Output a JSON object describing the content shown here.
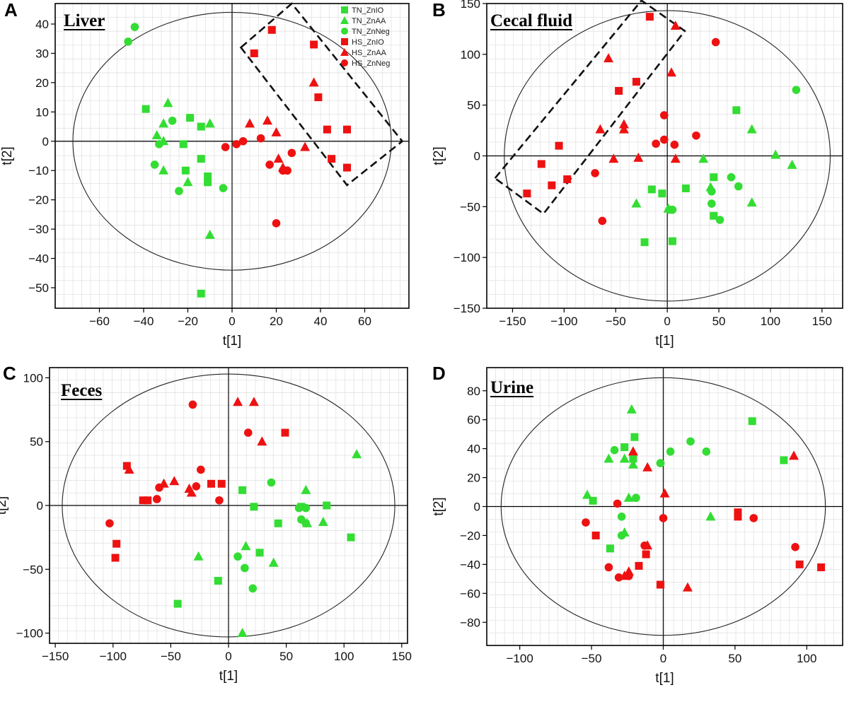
{
  "figure": {
    "legend": [
      {
        "label": "TN_ZnIO",
        "color": "#33dd33",
        "marker": "square"
      },
      {
        "label": "TN_ZnAA",
        "color": "#33dd33",
        "marker": "triangle"
      },
      {
        "label": "TN_ZnNeg",
        "color": "#33dd33",
        "marker": "circle"
      },
      {
        "label": "HS_ZnIO",
        "color": "#ee1111",
        "marker": "square"
      },
      {
        "label": "HS_ZnAA",
        "color": "#ee1111",
        "marker": "triangle"
      },
      {
        "label": "HS_ZnNeg",
        "color": "#ee1111",
        "marker": "circle"
      }
    ]
  },
  "chart_data": [
    {
      "type": "scatter",
      "letter": "A",
      "title": "Liver",
      "xlabel": "t[1]",
      "ylabel": "t[2]",
      "xlim": [
        -80,
        80
      ],
      "ylim": [
        -57,
        47
      ],
      "xticks": [
        -60,
        -40,
        -20,
        0,
        20,
        40,
        60
      ],
      "yticks": [
        -50,
        -40,
        -30,
        -20,
        -10,
        0,
        10,
        20,
        30,
        40
      ],
      "ellipse": {
        "rx": 72,
        "ry": 44
      },
      "highlight_box": [
        [
          4,
          32
        ],
        [
          27,
          47
        ],
        [
          77,
          0
        ],
        [
          52,
          -15
        ]
      ],
      "series": [
        {
          "name": "TN_ZnIO",
          "color": "#33dd33",
          "marker": "square",
          "points": [
            [
              -39,
              11
            ],
            [
              -19,
              8
            ],
            [
              -14,
              5
            ],
            [
              -22,
              -1
            ],
            [
              -21,
              -10
            ],
            [
              -14,
              -6
            ],
            [
              -11,
              -12
            ],
            [
              -11,
              -14
            ],
            [
              -14,
              -52
            ]
          ]
        },
        {
          "name": "TN_ZnAA",
          "color": "#33dd33",
          "marker": "triangle",
          "points": [
            [
              -29,
              13
            ],
            [
              -31,
              6
            ],
            [
              -34,
              2
            ],
            [
              -31,
              0
            ],
            [
              -31,
              -10
            ],
            [
              -20,
              -14
            ],
            [
              -10,
              6
            ],
            [
              -10,
              -32
            ]
          ]
        },
        {
          "name": "TN_ZnNeg",
          "color": "#33dd33",
          "marker": "circle",
          "points": [
            [
              -44,
              39
            ],
            [
              -47,
              34
            ],
            [
              -27,
              7
            ],
            [
              -33,
              -1
            ],
            [
              -35,
              -8
            ],
            [
              -24,
              -17
            ],
            [
              -4,
              -16
            ]
          ]
        },
        {
          "name": "HS_ZnIO",
          "color": "#ee1111",
          "marker": "square",
          "points": [
            [
              18,
              38
            ],
            [
              10,
              30
            ],
            [
              37,
              33
            ],
            [
              39,
              15
            ],
            [
              43,
              4
            ],
            [
              52,
              4
            ],
            [
              45,
              -6
            ],
            [
              52,
              -9
            ]
          ]
        },
        {
          "name": "HS_ZnAA",
          "color": "#ee1111",
          "marker": "triangle",
          "points": [
            [
              37,
              20
            ],
            [
              8,
              6
            ],
            [
              16,
              7
            ],
            [
              20,
              3
            ],
            [
              33,
              -2
            ],
            [
              21,
              -6
            ],
            [
              23,
              -9
            ]
          ]
        },
        {
          "name": "HS_ZnNeg",
          "color": "#ee1111",
          "marker": "circle",
          "points": [
            [
              -3,
              -2
            ],
            [
              2,
              -1
            ],
            [
              5,
              0
            ],
            [
              13,
              1
            ],
            [
              17,
              -8
            ],
            [
              23,
              -10
            ],
            [
              25,
              -10
            ],
            [
              27,
              -4
            ],
            [
              20,
              -28
            ]
          ]
        }
      ]
    },
    {
      "type": "scatter",
      "letter": "B",
      "title": "Cecal fluid",
      "xlabel": "t[1]",
      "ylabel": "t[2]",
      "xlim": [
        -175,
        170
      ],
      "ylim": [
        -150,
        150
      ],
      "xticks": [
        -150,
        -100,
        -50,
        0,
        50,
        100,
        150
      ],
      "yticks": [
        -150,
        -100,
        -50,
        0,
        50,
        100,
        150
      ],
      "ellipse": {
        "rx": 158,
        "ry": 143
      },
      "highlight_box": [
        [
          -167,
          -22
        ],
        [
          -25,
          153
        ],
        [
          17,
          123
        ],
        [
          -120,
          -57
        ]
      ],
      "series": [
        {
          "name": "TN_ZnIO",
          "color": "#33dd33",
          "marker": "square",
          "points": [
            [
              67,
              45
            ],
            [
              -15,
              -33
            ],
            [
              -5,
              -37
            ],
            [
              18,
              -32
            ],
            [
              -22,
              -85
            ],
            [
              5,
              -84
            ],
            [
              45,
              -21
            ],
            [
              45,
              -59
            ]
          ]
        },
        {
          "name": "TN_ZnAA",
          "color": "#33dd33",
          "marker": "triangle",
          "points": [
            [
              82,
              26
            ],
            [
              105,
              1
            ],
            [
              121,
              -9
            ],
            [
              82,
              -46
            ],
            [
              -30,
              -47
            ],
            [
              1,
              -52
            ],
            [
              35,
              -3
            ],
            [
              42,
              -31
            ]
          ]
        },
        {
          "name": "TN_ZnNeg",
          "color": "#33dd33",
          "marker": "circle",
          "points": [
            [
              125,
              65
            ],
            [
              43,
              -35
            ],
            [
              43,
              -47
            ],
            [
              62,
              -21
            ],
            [
              69,
              -30
            ],
            [
              51,
              -63
            ],
            [
              2,
              -53
            ],
            [
              5,
              -53
            ]
          ]
        },
        {
          "name": "HS_ZnIO",
          "color": "#ee1111",
          "marker": "square",
          "points": [
            [
              -17,
              137
            ],
            [
              -30,
              73
            ],
            [
              -47,
              64
            ],
            [
              -105,
              10
            ],
            [
              -122,
              -8
            ],
            [
              -97,
              -23
            ],
            [
              -112,
              -29
            ],
            [
              -136,
              -37
            ]
          ]
        },
        {
          "name": "HS_ZnAA",
          "color": "#ee1111",
          "marker": "triangle",
          "points": [
            [
              8,
              128
            ],
            [
              -57,
              96
            ],
            [
              4,
              82
            ],
            [
              -65,
              26
            ],
            [
              -42,
              31
            ],
            [
              -42,
              26
            ],
            [
              -28,
              -2
            ],
            [
              -52,
              -3
            ],
            [
              8,
              -3
            ]
          ]
        },
        {
          "name": "HS_ZnNeg",
          "color": "#ee1111",
          "marker": "circle",
          "points": [
            [
              47,
              112
            ],
            [
              -3,
              40
            ],
            [
              -3,
              16
            ],
            [
              -11,
              12
            ],
            [
              7,
              11
            ],
            [
              28,
              20
            ],
            [
              -70,
              -17
            ],
            [
              -63,
              -64
            ]
          ]
        }
      ]
    },
    {
      "type": "scatter",
      "letter": "C",
      "title": "Feces",
      "xlabel": "t[1]",
      "ylabel": "t[2]",
      "xlim": [
        -155,
        155
      ],
      "ylim": [
        -108,
        108
      ],
      "xticks": [
        -150,
        -100,
        -50,
        0,
        50,
        100,
        150
      ],
      "yticks": [
        -100,
        -50,
        0,
        50,
        100
      ],
      "ellipse": {
        "rx": 144,
        "ry": 103
      },
      "highlight_box": null,
      "series": [
        {
          "name": "TN_ZnIO",
          "color": "#33dd33",
          "marker": "square",
          "points": [
            [
              12,
              12
            ],
            [
              22,
              -1
            ],
            [
              43,
              -14
            ],
            [
              63,
              -1
            ],
            [
              85,
              0
            ],
            [
              106,
              -25
            ],
            [
              27,
              -37
            ],
            [
              -9,
              -59
            ],
            [
              -44,
              -77
            ]
          ]
        },
        {
          "name": "TN_ZnAA",
          "color": "#33dd33",
          "marker": "triangle",
          "points": [
            [
              111,
              40
            ],
            [
              67,
              12
            ],
            [
              68,
              -14
            ],
            [
              82,
              -13
            ],
            [
              39,
              -45
            ],
            [
              15,
              -32
            ],
            [
              -26,
              -40
            ],
            [
              12,
              -100
            ]
          ]
        },
        {
          "name": "TN_ZnNeg",
          "color": "#33dd33",
          "marker": "circle",
          "points": [
            [
              37,
              18
            ],
            [
              61,
              -2
            ],
            [
              67,
              -2
            ],
            [
              63,
              -11
            ],
            [
              67,
              -14
            ],
            [
              8,
              -40
            ],
            [
              14,
              -49
            ],
            [
              21,
              -65
            ]
          ]
        },
        {
          "name": "HS_ZnIO",
          "color": "#ee1111",
          "marker": "square",
          "points": [
            [
              49,
              57
            ],
            [
              -88,
              31
            ],
            [
              -15,
              17
            ],
            [
              -6,
              17
            ],
            [
              -74,
              4
            ],
            [
              -70,
              4
            ],
            [
              -97,
              -30
            ],
            [
              -98,
              -41
            ]
          ]
        },
        {
          "name": "HS_ZnAA",
          "color": "#ee1111",
          "marker": "triangle",
          "points": [
            [
              8,
              81
            ],
            [
              22,
              81
            ],
            [
              29,
              50
            ],
            [
              -86,
              28
            ],
            [
              -56,
              17
            ],
            [
              -47,
              19
            ],
            [
              -34,
              13
            ],
            [
              -32,
              10
            ]
          ]
        },
        {
          "name": "HS_ZnNeg",
          "color": "#ee1111",
          "marker": "circle",
          "points": [
            [
              -31,
              79
            ],
            [
              17,
              57
            ],
            [
              -24,
              28
            ],
            [
              -60,
              14
            ],
            [
              -28,
              15
            ],
            [
              -62,
              5
            ],
            [
              -8,
              4
            ],
            [
              -103,
              -14
            ]
          ]
        }
      ]
    },
    {
      "type": "scatter",
      "letter": "D",
      "title": "Urine",
      "xlabel": "t[1]",
      "ylabel": "t[2]",
      "xlim": [
        -123,
        125
      ],
      "ylim": [
        -96,
        96
      ],
      "xticks": [
        -100,
        -50,
        0,
        50,
        100
      ],
      "yticks": [
        -80,
        -60,
        -40,
        -20,
        0,
        20,
        40,
        60,
        80
      ],
      "ellipse": {
        "rx": 113,
        "ry": 89
      },
      "highlight_box": null,
      "series": [
        {
          "name": "TN_ZnIO",
          "color": "#33dd33",
          "marker": "square",
          "points": [
            [
              62,
              59
            ],
            [
              84,
              32
            ],
            [
              -20,
              48
            ],
            [
              -27,
              41
            ],
            [
              -21,
              33
            ],
            [
              -49,
              4
            ],
            [
              -37,
              -29
            ]
          ]
        },
        {
          "name": "TN_ZnAA",
          "color": "#33dd33",
          "marker": "triangle",
          "points": [
            [
              -22,
              67
            ],
            [
              -38,
              33
            ],
            [
              -27,
              33
            ],
            [
              -53,
              8
            ],
            [
              -24,
              6
            ],
            [
              -27,
              -18
            ],
            [
              -21,
              29
            ],
            [
              33,
              -7
            ]
          ]
        },
        {
          "name": "TN_ZnNeg",
          "color": "#33dd33",
          "marker": "circle",
          "points": [
            [
              -34,
              39
            ],
            [
              -2,
              30
            ],
            [
              5,
              38
            ],
            [
              19,
              45
            ],
            [
              30,
              38
            ],
            [
              -19,
              6
            ],
            [
              -29,
              -7
            ],
            [
              -29,
              -20
            ]
          ]
        },
        {
          "name": "HS_ZnIO",
          "color": "#ee1111",
          "marker": "square",
          "points": [
            [
              52,
              -4
            ],
            [
              52,
              -7
            ],
            [
              95,
              -40
            ],
            [
              110,
              -42
            ],
            [
              -47,
              -20
            ],
            [
              -12,
              -33
            ],
            [
              -17,
              -41
            ],
            [
              -2,
              -54
            ]
          ]
        },
        {
          "name": "HS_ZnAA",
          "color": "#ee1111",
          "marker": "triangle",
          "points": [
            [
              91,
              35
            ],
            [
              -21,
              38
            ],
            [
              -11,
              27
            ],
            [
              1,
              9
            ],
            [
              -11,
              -27
            ],
            [
              -24,
              -45
            ],
            [
              -27,
              -48
            ],
            [
              17,
              -56
            ]
          ]
        },
        {
          "name": "HS_ZnNeg",
          "color": "#ee1111",
          "marker": "circle",
          "points": [
            [
              -54,
              -11
            ],
            [
              -32,
              2
            ],
            [
              0,
              -8
            ],
            [
              63,
              -8
            ],
            [
              92,
              -28
            ],
            [
              -13,
              -27
            ],
            [
              -38,
              -42
            ],
            [
              -31,
              -49
            ],
            [
              -24,
              -48
            ]
          ]
        }
      ]
    }
  ]
}
